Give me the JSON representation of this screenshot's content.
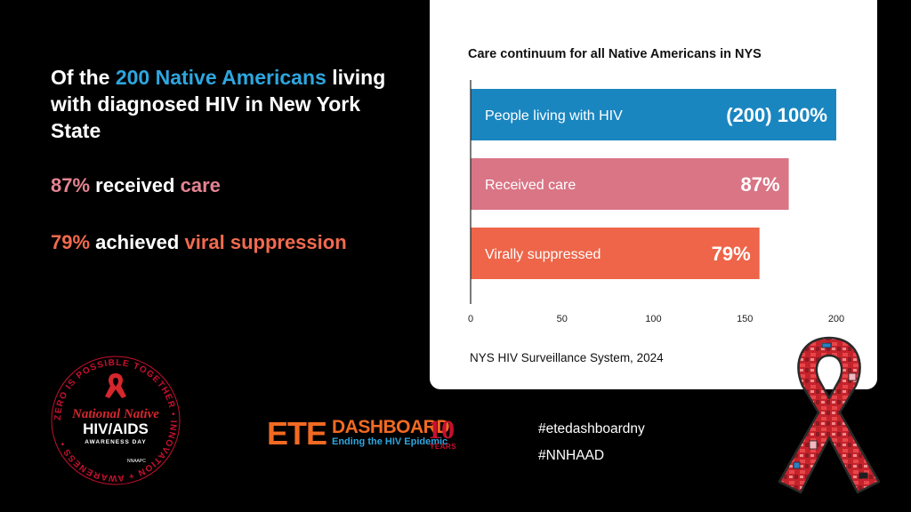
{
  "headline": {
    "prefix": "Of the",
    "accent": "200 Native Americans",
    "rest": "living with diagnosed HIV in New York State"
  },
  "stats": [
    {
      "value": "87%",
      "text": "received",
      "highlight": "care"
    },
    {
      "value": "79%",
      "text": "achieved",
      "highlight": "viral suppression"
    }
  ],
  "chart_data": {
    "type": "bar",
    "orientation": "horizontal",
    "title": "Care continuum for all Native Americans in NYS",
    "categories": [
      "People living with HIV",
      "Received care",
      "Virally suppressed"
    ],
    "values": [
      200,
      174,
      158
    ],
    "data_labels": [
      "(200) 100%",
      "87%",
      "79%"
    ],
    "colors": [
      "#1a86c0",
      "#d97585",
      "#ee6549"
    ],
    "xlim": [
      0,
      200
    ],
    "xticks": [
      0,
      50,
      100,
      150,
      200
    ],
    "xlabel": "",
    "ylabel": "",
    "grid": false
  },
  "source": "NYS HIV Surveillance System, 2024",
  "logos": {
    "nnhaad_arc": "ZERO IS POSSIBLE TOGETHER  •  INNOVATION + AWARENESS  •",
    "nnhaad_line1": "National Native",
    "nnhaad_line2": "HIV/AIDS",
    "nnhaad_line3": "AWARENESS DAY",
    "nnhaad_small": "NNAAPC",
    "ete_big": "ETE",
    "ete_dash": "DASHBOARD",
    "ete_sub": "Ending the HIV Epidemic",
    "ete_ten": "10",
    "ete_years": "YEARS"
  },
  "hashtags": [
    "#etedashboardny",
    "#NNHAAD"
  ],
  "icons": {
    "ribbon": "awareness-ribbon-icon"
  }
}
